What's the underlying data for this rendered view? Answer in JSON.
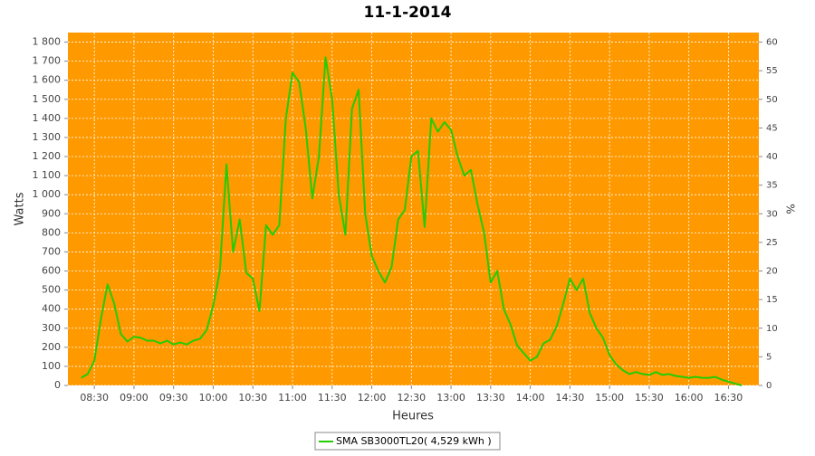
{
  "chart_data": {
    "type": "line",
    "title": "11-1-2014",
    "x_label": "Heures",
    "y_label": "Watts",
    "y2_label": "%",
    "background": "#ff9900",
    "grid": true,
    "x": [
      "08:20",
      "08:25",
      "08:30",
      "08:35",
      "08:40",
      "08:45",
      "08:50",
      "08:55",
      "09:00",
      "09:05",
      "09:10",
      "09:15",
      "09:20",
      "09:25",
      "09:30",
      "09:35",
      "09:40",
      "09:45",
      "09:50",
      "09:55",
      "10:00",
      "10:05",
      "10:10",
      "10:15",
      "10:20",
      "10:25",
      "10:30",
      "10:35",
      "10:40",
      "10:45",
      "10:50",
      "10:55",
      "11:00",
      "11:05",
      "11:10",
      "11:15",
      "11:20",
      "11:25",
      "11:30",
      "11:35",
      "11:40",
      "11:45",
      "11:50",
      "11:55",
      "12:00",
      "12:05",
      "12:10",
      "12:15",
      "12:20",
      "12:25",
      "12:30",
      "12:35",
      "12:40",
      "12:45",
      "12:50",
      "12:55",
      "13:00",
      "13:05",
      "13:10",
      "13:15",
      "13:20",
      "13:25",
      "13:30",
      "13:35",
      "13:40",
      "13:45",
      "13:50",
      "13:55",
      "14:00",
      "14:05",
      "14:10",
      "14:15",
      "14:20",
      "14:25",
      "14:30",
      "14:35",
      "14:40",
      "14:45",
      "14:50",
      "14:55",
      "15:00",
      "15:05",
      "15:10",
      "15:15",
      "15:20",
      "15:25",
      "15:30",
      "15:35",
      "15:40",
      "15:45",
      "15:50",
      "15:55",
      "16:00",
      "16:05",
      "16:10",
      "16:15",
      "16:20",
      "16:25",
      "16:30",
      "16:35",
      "16:40"
    ],
    "series": [
      {
        "name": "SMA SB3000TL20( 4,529 kWh )",
        "color": "#22cc00",
        "values": [
          40,
          60,
          130,
          350,
          530,
          430,
          270,
          230,
          255,
          250,
          235,
          235,
          220,
          235,
          215,
          225,
          215,
          235,
          245,
          290,
          420,
          600,
          1160,
          700,
          870,
          590,
          560,
          390,
          840,
          790,
          840,
          1400,
          1640,
          1590,
          1350,
          980,
          1200,
          1720,
          1500,
          1000,
          790,
          1450,
          1550,
          900,
          680,
          600,
          540,
          620,
          870,
          920,
          1200,
          1230,
          830,
          1400,
          1330,
          1380,
          1340,
          1200,
          1100,
          1130,
          950,
          800,
          540,
          600,
          400,
          320,
          210,
          170,
          130,
          150,
          220,
          240,
          310,
          430,
          560,
          500,
          560,
          380,
          300,
          250,
          160,
          110,
          80,
          60,
          70,
          60,
          55,
          70,
          55,
          60,
          50,
          45,
          40,
          45,
          40,
          40,
          45,
          30,
          20,
          10,
          0
        ]
      }
    ],
    "xlim": [
      "08:10",
      "16:53"
    ],
    "xticks": [
      "08:30",
      "09:00",
      "09:30",
      "10:00",
      "10:30",
      "11:00",
      "11:30",
      "12:00",
      "12:30",
      "13:00",
      "13:30",
      "14:00",
      "14:30",
      "15:00",
      "15:30",
      "16:00",
      "16:30"
    ],
    "ylim": [
      0,
      1850
    ],
    "yticks": [
      0,
      100,
      200,
      300,
      400,
      500,
      600,
      700,
      800,
      900,
      {
        "value": 1000,
        "label": "1 000"
      },
      {
        "value": 1100,
        "label": "1 100"
      },
      {
        "value": 1200,
        "label": "1 200"
      },
      {
        "value": 1300,
        "label": "1 300"
      },
      {
        "value": 1400,
        "label": "1 400"
      },
      {
        "value": 1500,
        "label": "1 500"
      },
      {
        "value": 1600,
        "label": "1 600"
      },
      {
        "value": 1700,
        "label": "1 700"
      },
      {
        "value": 1800,
        "label": "1 800"
      }
    ],
    "y2lim": [
      0,
      61.67
    ],
    "y2ticks": [
      0,
      5,
      10,
      15,
      20,
      25,
      30,
      35,
      40,
      45,
      50,
      55,
      60
    ]
  }
}
